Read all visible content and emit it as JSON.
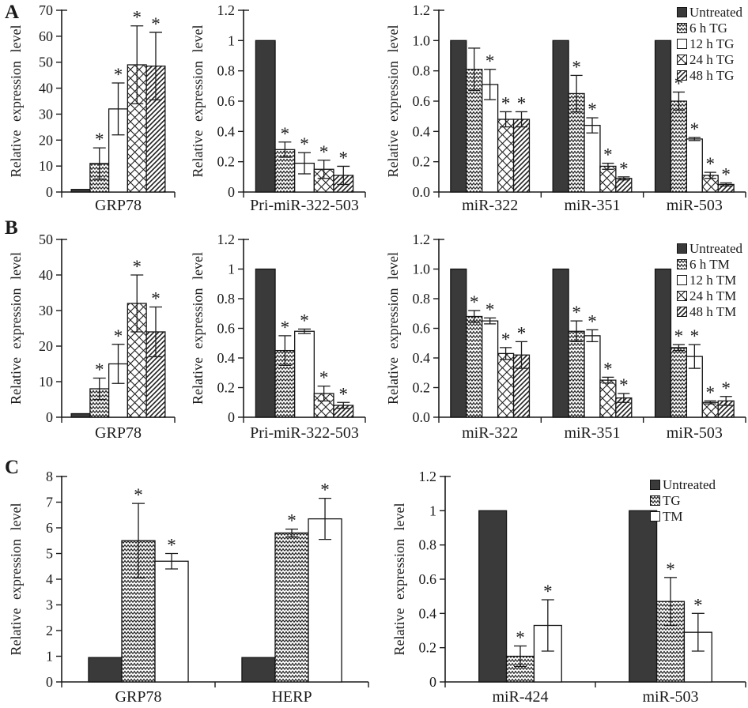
{
  "chart_data": {
    "type": "bar",
    "figure_description": "Relative expression levels under ER-stress treatments (TG/TM); asterisk marks significant difference",
    "panels": [
      {
        "label": "A",
        "legend": [
          {
            "label": "Untreated",
            "pattern": "solid"
          },
          {
            "label": "6 h TG",
            "pattern": "weave"
          },
          {
            "label": "12 h TG",
            "pattern": "open"
          },
          {
            "label": "24 h TG",
            "pattern": "diamond"
          },
          {
            "label": "48 h TG",
            "pattern": "diag"
          }
        ],
        "legend_position": "top-right",
        "charts": [
          {
            "type": "bar",
            "ylabel": "Relative expression level",
            "ylim": [
              0,
              70
            ],
            "yticks": [
              "0",
              "10",
              "20",
              "30",
              "40",
              "50",
              "60",
              "70"
            ],
            "grid": false,
            "categories": [
              "GRP78"
            ],
            "series": [
              {
                "name": "Untreated",
                "pattern": "solid",
                "values": [
                  1
                ],
                "errors": [
                  0
                ],
                "sig": [
                  false
                ]
              },
              {
                "name": "6 h TG",
                "pattern": "weave",
                "values": [
                  11
                ],
                "errors": [
                  6
                ],
                "sig": [
                  true
                ]
              },
              {
                "name": "12 h TG",
                "pattern": "open",
                "values": [
                  32
                ],
                "errors": [
                  10
                ],
                "sig": [
                  true
                ]
              },
              {
                "name": "24 h TG",
                "pattern": "diamond",
                "values": [
                  49
                ],
                "errors": [
                  15
                ],
                "sig": [
                  true
                ]
              },
              {
                "name": "48 h TG",
                "pattern": "diag",
                "values": [
                  48.5
                ],
                "errors": [
                  13
                ],
                "sig": [
                  true
                ]
              }
            ]
          },
          {
            "type": "bar",
            "ylabel": "Relative expression level",
            "ylim": [
              0,
              1.2
            ],
            "yticks": [
              "0",
              "0.2",
              "0.4",
              "0.6",
              "0.8",
              "1",
              "1.2"
            ],
            "grid": false,
            "categories": [
              "Pri-miR-322-503"
            ],
            "series": [
              {
                "name": "Untreated",
                "pattern": "solid",
                "values": [
                  1
                ],
                "errors": [
                  0
                ],
                "sig": [
                  false
                ]
              },
              {
                "name": "6 h TG",
                "pattern": "weave",
                "values": [
                  0.28
                ],
                "errors": [
                  0.05
                ],
                "sig": [
                  true
                ]
              },
              {
                "name": "12 h TG",
                "pattern": "open",
                "values": [
                  0.19
                ],
                "errors": [
                  0.07
                ],
                "sig": [
                  true
                ]
              },
              {
                "name": "24 h TG",
                "pattern": "diamond",
                "values": [
                  0.15
                ],
                "errors": [
                  0.06
                ],
                "sig": [
                  true
                ]
              },
              {
                "name": "48 h TG",
                "pattern": "diag",
                "values": [
                  0.11
                ],
                "errors": [
                  0.06
                ],
                "sig": [
                  true
                ]
              }
            ]
          },
          {
            "type": "bar",
            "ylabel": "Relative expression level",
            "ylim": [
              0,
              1.2
            ],
            "yticks": [
              "0.0",
              "0.2",
              "0.4",
              "0.6",
              "0.8",
              "1.0",
              "1.2"
            ],
            "grid": false,
            "categories": [
              "miR-322",
              "miR-351",
              "miR-503"
            ],
            "series": [
              {
                "name": "Untreated",
                "pattern": "solid",
                "values": [
                  1,
                  1,
                  1
                ],
                "errors": [
                  0,
                  0,
                  0
                ],
                "sig": [
                  false,
                  false,
                  false
                ]
              },
              {
                "name": "6 h TG",
                "pattern": "weave",
                "values": [
                  0.81,
                  0.65,
                  0.6
                ],
                "errors": [
                  0.14,
                  0.12,
                  0.06
                ],
                "sig": [
                  false,
                  true,
                  true
                ]
              },
              {
                "name": "12 h TG",
                "pattern": "open",
                "values": [
                  0.71,
                  0.44,
                  0.35
                ],
                "errors": [
                  0.1,
                  0.05,
                  0.01
                ],
                "sig": [
                  true,
                  true,
                  true
                ]
              },
              {
                "name": "24 h TG",
                "pattern": "diamond",
                "values": [
                  0.48,
                  0.17,
                  0.11
                ],
                "errors": [
                  0.05,
                  0.02,
                  0.02
                ],
                "sig": [
                  true,
                  true,
                  true
                ]
              },
              {
                "name": "48 h TG",
                "pattern": "diag",
                "values": [
                  0.48,
                  0.09,
                  0.05
                ],
                "errors": [
                  0.05,
                  0.01,
                  0.01
                ],
                "sig": [
                  true,
                  true,
                  true
                ]
              }
            ]
          }
        ]
      },
      {
        "label": "B",
        "legend": [
          {
            "label": "Untreated",
            "pattern": "solid"
          },
          {
            "label": "6 h TM",
            "pattern": "weave"
          },
          {
            "label": "12 h TM",
            "pattern": "open"
          },
          {
            "label": "24 h TM",
            "pattern": "diamond"
          },
          {
            "label": "48 h TM",
            "pattern": "diag"
          }
        ],
        "legend_position": "top-right",
        "charts": [
          {
            "type": "bar",
            "ylabel": "Relative expression level",
            "ylim": [
              0,
              50
            ],
            "yticks": [
              "0",
              "10",
              "20",
              "30",
              "40",
              "50"
            ],
            "grid": false,
            "categories": [
              "GRP78"
            ],
            "series": [
              {
                "name": "Untreated",
                "pattern": "solid",
                "values": [
                  1
                ],
                "errors": [
                  0
                ],
                "sig": [
                  false
                ]
              },
              {
                "name": "6 h TM",
                "pattern": "weave",
                "values": [
                  8
                ],
                "errors": [
                  3
                ],
                "sig": [
                  true
                ]
              },
              {
                "name": "12 h TM",
                "pattern": "open",
                "values": [
                  15
                ],
                "errors": [
                  5.5
                ],
                "sig": [
                  true
                ]
              },
              {
                "name": "24 h TM",
                "pattern": "diamond",
                "values": [
                  32
                ],
                "errors": [
                  8
                ],
                "sig": [
                  true
                ]
              },
              {
                "name": "48 h TM",
                "pattern": "diag",
                "values": [
                  24
                ],
                "errors": [
                  7
                ],
                "sig": [
                  true
                ]
              }
            ]
          },
          {
            "type": "bar",
            "ylabel": "Relative expression level",
            "ylim": [
              0,
              1.2
            ],
            "yticks": [
              "0",
              "0.2",
              "0.4",
              "0.6",
              "0.8",
              "1",
              "1.2"
            ],
            "grid": false,
            "categories": [
              "Pri-miR-322-503"
            ],
            "series": [
              {
                "name": "Untreated",
                "pattern": "solid",
                "values": [
                  1
                ],
                "errors": [
                  0
                ],
                "sig": [
                  false
                ]
              },
              {
                "name": "6 h TM",
                "pattern": "weave",
                "values": [
                  0.45
                ],
                "errors": [
                  0.1
                ],
                "sig": [
                  true
                ]
              },
              {
                "name": "12 h TM",
                "pattern": "open",
                "values": [
                  0.58
                ],
                "errors": [
                  0.015
                ],
                "sig": [
                  true
                ]
              },
              {
                "name": "24 h TM",
                "pattern": "diamond",
                "values": [
                  0.16
                ],
                "errors": [
                  0.05
                ],
                "sig": [
                  true
                ]
              },
              {
                "name": "48 h TM",
                "pattern": "diag",
                "values": [
                  0.08
                ],
                "errors": [
                  0.02
                ],
                "sig": [
                  true
                ]
              }
            ]
          },
          {
            "type": "bar",
            "ylabel": "Relative expression level",
            "ylim": [
              0,
              1.2
            ],
            "yticks": [
              "0.0",
              "0.2",
              "0.4",
              "0.6",
              "0.8",
              "1.0",
              "1.2"
            ],
            "grid": false,
            "categories": [
              "miR-322",
              "miR-351",
              "miR-503"
            ],
            "series": [
              {
                "name": "Untreated",
                "pattern": "solid",
                "values": [
                  1,
                  1,
                  1
                ],
                "errors": [
                  0,
                  0,
                  0
                ],
                "sig": [
                  false,
                  false,
                  false
                ]
              },
              {
                "name": "6 h TM",
                "pattern": "weave",
                "values": [
                  0.68,
                  0.58,
                  0.47
                ],
                "errors": [
                  0.04,
                  0.07,
                  0.02
                ],
                "sig": [
                  true,
                  true,
                  true
                ]
              },
              {
                "name": "12 h TM",
                "pattern": "open",
                "values": [
                  0.65,
                  0.55,
                  0.41
                ],
                "errors": [
                  0.02,
                  0.04,
                  0.08
                ],
                "sig": [
                  true,
                  true,
                  true
                ]
              },
              {
                "name": "24 h TM",
                "pattern": "diamond",
                "values": [
                  0.43,
                  0.25,
                  0.1
                ],
                "errors": [
                  0.04,
                  0.02,
                  0.01
                ],
                "sig": [
                  true,
                  true,
                  true
                ]
              },
              {
                "name": "48 h TM",
                "pattern": "diag",
                "values": [
                  0.42,
                  0.13,
                  0.11
                ],
                "errors": [
                  0.09,
                  0.03,
                  0.03
                ],
                "sig": [
                  true,
                  true,
                  true
                ]
              }
            ]
          }
        ]
      },
      {
        "label": "C",
        "legend": [
          {
            "label": "Untreated",
            "pattern": "solid"
          },
          {
            "label": "TG",
            "pattern": "weave"
          },
          {
            "label": "TM",
            "pattern": "open"
          }
        ],
        "legend_position": "top-right",
        "charts": [
          {
            "type": "bar",
            "ylabel": "Relative expression level",
            "ylim": [
              0,
              8
            ],
            "yticks": [
              "0",
              "1",
              "2",
              "3",
              "4",
              "5",
              "6",
              "7",
              "8"
            ],
            "grid": false,
            "categories": [
              "GRP78",
              "HERP"
            ],
            "series": [
              {
                "name": "Untreated",
                "pattern": "solid",
                "values": [
                  0.95,
                  0.95
                ],
                "errors": [
                  0,
                  0
                ],
                "sig": [
                  false,
                  false
                ]
              },
              {
                "name": "TG",
                "pattern": "weave",
                "values": [
                  5.5,
                  5.8
                ],
                "errors": [
                  1.45,
                  0.15
                ],
                "sig": [
                  true,
                  true
                ]
              },
              {
                "name": "TM",
                "pattern": "open",
                "values": [
                  4.7,
                  6.35
                ],
                "errors": [
                  0.3,
                  0.8
                ],
                "sig": [
                  true,
                  true
                ]
              }
            ]
          },
          {
            "type": "bar",
            "ylabel": "Relative expression level",
            "ylim": [
              0,
              1.2
            ],
            "yticks": [
              "0",
              "0.2",
              "0.4",
              "0.6",
              "0.8",
              "1",
              "1.2"
            ],
            "grid": false,
            "categories": [
              "miR-424",
              "miR-503"
            ],
            "series": [
              {
                "name": "Untreated",
                "pattern": "solid",
                "values": [
                  1,
                  1
                ],
                "errors": [
                  0,
                  0
                ],
                "sig": [
                  false,
                  false
                ]
              },
              {
                "name": "TG",
                "pattern": "weave",
                "values": [
                  0.15,
                  0.47
                ],
                "errors": [
                  0.06,
                  0.14
                ],
                "sig": [
                  true,
                  true
                ]
              },
              {
                "name": "TM",
                "pattern": "open",
                "values": [
                  0.33,
                  0.29
                ],
                "errors": [
                  0.15,
                  0.11
                ],
                "sig": [
                  true,
                  true
                ]
              }
            ]
          }
        ]
      }
    ]
  }
}
